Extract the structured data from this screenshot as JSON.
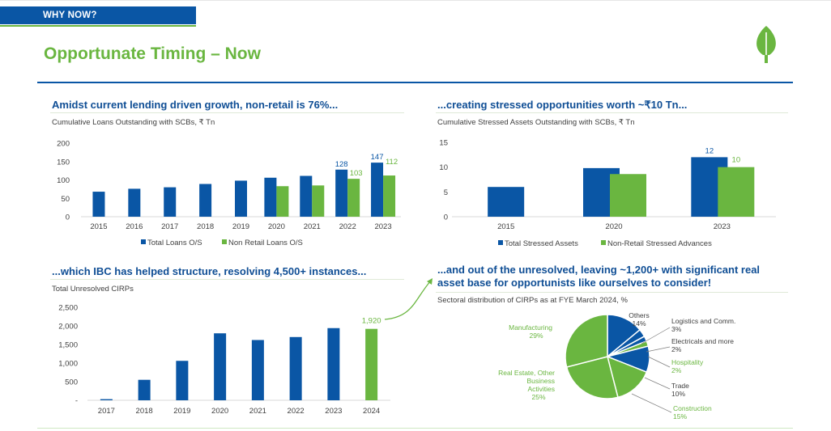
{
  "tag": "WHY NOW?",
  "title": "Opportunate Timing – Now",
  "colors": {
    "blue": "#0a56a5",
    "green": "#6ab640",
    "heading": "#0f4e95"
  },
  "q1": {
    "heading": "Amidst current lending driven growth, non-retail is 76%...",
    "subtitle": "Cumulative Loans Outstanding with SCBs, ₹ Tn"
  },
  "q2": {
    "heading": "...creating stressed opportunities worth ~₹10 Tn...",
    "subtitle": "Cumulative Stressed Assets Outstanding with SCBs, ₹ Tn"
  },
  "q3": {
    "heading": "...which IBC has helped structure, resolving 4,500+ instances...",
    "subtitle": "Total Unresolved CIRPs"
  },
  "q4": {
    "heading_line1": "...and out of the unresolved, leaving ~1,200+ with significant real",
    "heading_line2": "asset base for opportunists like ourselves to consider!",
    "subtitle": "Sectoral distribution of CIRPs as at FYE March 2024, %"
  },
  "chart_data": [
    {
      "type": "bar",
      "categories": [
        "2015",
        "2016",
        "2017",
        "2018",
        "2019",
        "2020",
        "2021",
        "2022",
        "2023"
      ],
      "series": [
        {
          "name": "Total Loans O/S",
          "values": [
            68,
            76,
            80,
            89,
            98,
            106,
            111,
            128,
            147
          ],
          "labels": [
            "",
            "",
            "",
            "",
            "",
            "",
            "",
            "128",
            "147"
          ]
        },
        {
          "name": "Non Retail Loans O/S",
          "values": [
            null,
            null,
            null,
            null,
            null,
            83,
            85,
            103,
            112
          ],
          "labels": [
            "",
            "",
            "",
            "",
            "",
            "",
            "",
            "103",
            "112"
          ]
        }
      ],
      "ylim": [
        0,
        200
      ],
      "yticks": [
        "0",
        "50",
        "100",
        "150",
        "200"
      ],
      "legend": "bottom"
    },
    {
      "type": "bar",
      "categories": [
        "2015",
        "2020",
        "2023"
      ],
      "series": [
        {
          "name": "Total Stressed Assets",
          "values": [
            6,
            9.8,
            12
          ],
          "labels": [
            "",
            "",
            "12"
          ]
        },
        {
          "name": "Non-Retail Stressed Advances",
          "values": [
            null,
            8.6,
            10
          ],
          "labels": [
            "",
            "",
            "10"
          ]
        }
      ],
      "ylim": [
        0,
        15
      ],
      "yticks": [
        "0",
        "5",
        "10",
        "15"
      ],
      "legend": "bottom"
    },
    {
      "type": "bar",
      "categories": [
        "2017",
        "2018",
        "2019",
        "2020",
        "2021",
        "2022",
        "2023",
        "2024"
      ],
      "values": [
        30,
        550,
        1060,
        1800,
        1620,
        1700,
        1940,
        1920
      ],
      "highlight_index": 7,
      "highlight_label": "1,920",
      "ylim": [
        0,
        2500
      ],
      "yticks": [
        "-",
        "500",
        "1,000",
        "1,500",
        "2,000",
        "2,500"
      ]
    },
    {
      "type": "pie",
      "slices": [
        {
          "name": "Others",
          "value": 14,
          "label": "14%",
          "color": "#0a56a5"
        },
        {
          "name": "Logistics and Comm.",
          "value": 3,
          "label": "3%",
          "color": "#0a56a5"
        },
        {
          "name": "Electricals and more",
          "value": 2,
          "label": "2%",
          "color": "#0a56a5"
        },
        {
          "name": "Hospitality",
          "value": 2,
          "label": "2%",
          "color": "#6ab640"
        },
        {
          "name": "Trade",
          "value": 10,
          "label": "10%",
          "color": "#0a56a5"
        },
        {
          "name": "Construction",
          "value": 15,
          "label": "15%",
          "color": "#6ab640"
        },
        {
          "name": "Real Estate, Other Business Activities",
          "value": 25,
          "label": "25%",
          "color": "#6ab640"
        },
        {
          "name": "Manufacturing",
          "value": 29,
          "label": "29%",
          "color": "#6ab640"
        }
      ]
    }
  ]
}
